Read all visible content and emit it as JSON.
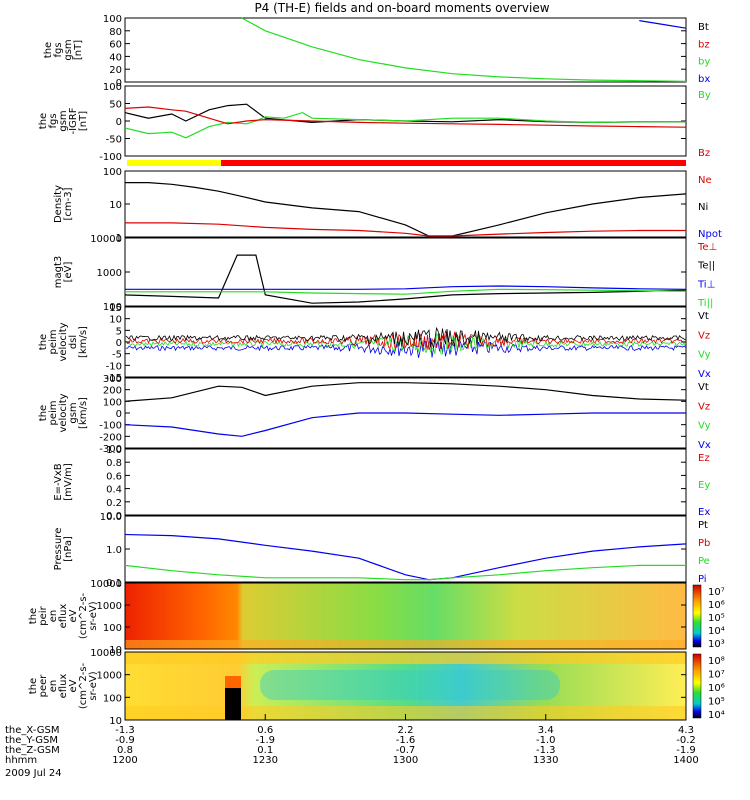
{
  "title": "P4 (TH-E) fields and on-board moments overview",
  "colors": {
    "black": "#000000",
    "red": "#dd0000",
    "green": "#22dd22",
    "blue": "#0000ee",
    "yellow": "#ffff00",
    "bar_red": "#ff0000"
  },
  "panels": [
    {
      "id": "fgs",
      "ylabel": [
        "the",
        "fgs",
        "gsm",
        "[nT]"
      ],
      "ticks": [
        "100",
        "80",
        "60",
        "40",
        "20",
        "0"
      ],
      "legend": [
        {
          "t": "Bt",
          "c": "black"
        },
        {
          "t": "bz",
          "c": "red"
        },
        {
          "t": "by",
          "c": "green"
        },
        {
          "t": "bx",
          "c": "blue"
        }
      ]
    },
    {
      "id": "fgs2",
      "ylabel": [
        "the",
        "fgs",
        "gsm",
        "-IGRF",
        "[nT]"
      ],
      "ticks": [
        "100",
        "50",
        "0",
        "-50",
        "-100"
      ],
      "legend": [
        {
          "t": "By",
          "c": "green"
        },
        {
          "t": "Bz",
          "c": "red"
        }
      ]
    },
    {
      "id": "dens",
      "ylabel": [
        "Density",
        "[cm-3]"
      ],
      "ticks": [
        "100",
        "10",
        "1"
      ],
      "legend": [
        {
          "t": "Ne",
          "c": "red"
        },
        {
          "t": "Ni",
          "c": "black"
        },
        {
          "t": "Npot",
          "c": "blue"
        }
      ]
    },
    {
      "id": "temp",
      "ylabel": [
        "magt3",
        "[eV]"
      ],
      "ticks": [
        "10000",
        "1000",
        "100"
      ],
      "legend": [
        {
          "t": "Te⊥",
          "c": "red"
        },
        {
          "t": "Te||",
          "c": "black"
        },
        {
          "t": "Ti⊥",
          "c": "blue"
        },
        {
          "t": "Ti||",
          "c": "green"
        }
      ]
    },
    {
      "id": "vel1",
      "ylabel": [
        "the",
        "peim",
        "velocity",
        "dsl",
        "[km/s]"
      ],
      "ticks": [
        "15",
        "10",
        "5",
        "0",
        "-5",
        "-10",
        "-15"
      ],
      "legend": [
        {
          "t": "Vt",
          "c": "black"
        },
        {
          "t": "Vz",
          "c": "red"
        },
        {
          "t": "Vy",
          "c": "green"
        },
        {
          "t": "Vx",
          "c": "blue"
        }
      ]
    },
    {
      "id": "vel2",
      "ylabel": [
        "the",
        "peim",
        "velocity",
        "gsm",
        "[km/s]"
      ],
      "ticks": [
        "300",
        "200",
        "100",
        "0",
        "-100",
        "-200",
        "-300"
      ],
      "legend": [
        {
          "t": "Vt",
          "c": "black"
        },
        {
          "t": "Vz",
          "c": "red"
        },
        {
          "t": "Vy",
          "c": "green"
        },
        {
          "t": "Vx",
          "c": "blue"
        }
      ]
    },
    {
      "id": "efield",
      "ylabel": [
        "E=-VxB",
        "[mV/m]"
      ],
      "ticks": [
        "1.0",
        "0.8",
        "0.6",
        "0.4",
        "0.2",
        "0.0"
      ],
      "legend": [
        {
          "t": "Ez",
          "c": "red"
        },
        {
          "t": "Ey",
          "c": "green"
        },
        {
          "t": "Ex",
          "c": "blue"
        }
      ]
    },
    {
      "id": "press",
      "ylabel": [
        "Pressure",
        "[nPa]"
      ],
      "ticks": [
        "10.0",
        "1.0",
        "0.1"
      ],
      "legend": [
        {
          "t": "Pt",
          "c": "black"
        },
        {
          "t": "Pb",
          "c": "red"
        },
        {
          "t": "Pe",
          "c": "green"
        },
        {
          "t": "Pi",
          "c": "blue"
        }
      ]
    },
    {
      "id": "ion_spec",
      "ylabel": [
        "the",
        "peir",
        "en",
        "eflux",
        "eV",
        "(cm^2-s-",
        "sr-eV)"
      ],
      "ticks": [
        "10000",
        "1000",
        "100",
        "10"
      ],
      "cbar": [
        "10⁷",
        "10⁶",
        "10⁵",
        "10⁴",
        "10³"
      ]
    },
    {
      "id": "el_spec",
      "ylabel": [
        "the",
        "peer",
        "en",
        "eflux",
        "eV",
        "(cm^2-s-",
        "sr-eV)"
      ],
      "ticks": [
        "10000",
        "1000",
        "100",
        "10"
      ],
      "cbar": [
        "10⁸",
        "10⁷",
        "10⁶",
        "10⁵",
        "10⁴"
      ]
    }
  ],
  "xaxis": {
    "rows": [
      {
        "label": "the_X-GSM",
        "values": [
          "-1.3",
          "0.6",
          "2.2",
          "3.4",
          "4.3"
        ]
      },
      {
        "label": "the_Y-GSM",
        "values": [
          "-0.9",
          "-1.9",
          "-1.6",
          "-1.0",
          "-0.2"
        ]
      },
      {
        "label": "the_Z-GSM",
        "values": [
          "0.8",
          "0.1",
          "-0.7",
          "-1.3",
          "-1.9"
        ]
      },
      {
        "label": "hhmm",
        "values": [
          "1200",
          "1230",
          "1300",
          "1330",
          "1400"
        ]
      }
    ],
    "date": "2009 Jul 24"
  },
  "chart_data": {
    "type": "line",
    "title": "P4 (TH-E) fields and on-board moments overview",
    "x_time": [
      "1200",
      "1230",
      "1300",
      "1330",
      "1400"
    ],
    "series": [
      {
        "panel": "fgs",
        "name": "by",
        "x": [
          "1200",
          "1205",
          "1210",
          "1215",
          "1220",
          "1225",
          "1230",
          "1240",
          "1250",
          "1300",
          "1310",
          "1320",
          "1330",
          "1340",
          "1350",
          "1400"
        ],
        "values": [
          null,
          null,
          null,
          null,
          null,
          100,
          80,
          55,
          35,
          22,
          13,
          8,
          5,
          3,
          2,
          1
        ]
      },
      {
        "panel": "fgs",
        "name": "bx",
        "x": [
          "1350",
          "1355",
          "1400"
        ],
        "values": [
          96,
          90,
          84
        ]
      },
      {
        "panel": "fgs2",
        "name": "Bt",
        "x": [
          "1200",
          "1205",
          "1210",
          "1213",
          "1218",
          "1222",
          "1226",
          "1230",
          "1240",
          "1250",
          "1300",
          "1310",
          "1320",
          "1330",
          "1340",
          "1350",
          "1400"
        ],
        "values": [
          30,
          10,
          25,
          0,
          40,
          55,
          60,
          10,
          -5,
          5,
          0,
          -3,
          5,
          -2,
          -5,
          -3,
          -3
        ]
      },
      {
        "panel": "fgs2",
        "name": "By",
        "x": [
          "1200",
          "1205",
          "1210",
          "1213",
          "1218",
          "1222",
          "1226",
          "1228",
          "1230",
          "1234",
          "1238",
          "1240",
          "1250",
          "1300",
          "1310",
          "1320",
          "1330",
          "1340",
          "1350",
          "1400"
        ],
        "values": [
          -25,
          -45,
          -40,
          -60,
          -20,
          -5,
          -10,
          0,
          15,
          10,
          30,
          10,
          5,
          0,
          10,
          10,
          0,
          -5,
          -3,
          -3
        ]
      },
      {
        "panel": "fgs2",
        "name": "Bz",
        "x": [
          "1200",
          "1205",
          "1210",
          "1213",
          "1218",
          "1222",
          "1226",
          "1230",
          "1240",
          "1250",
          "1300",
          "1310",
          "1320",
          "1330",
          "1340",
          "1350",
          "1400"
        ],
        "values": [
          45,
          50,
          40,
          35,
          10,
          -10,
          0,
          5,
          0,
          -5,
          -8,
          -10,
          -12,
          -15,
          -18,
          -20,
          -22
        ]
      },
      {
        "panel": "dens",
        "name": "Ni",
        "x": [
          "1200",
          "1205",
          "1210",
          "1215",
          "1220",
          "1225",
          "1230",
          "1240",
          "1250",
          "1300",
          "1305",
          "1310",
          "1320",
          "1330",
          "1340",
          "1350",
          "1400"
        ],
        "values": [
          70,
          70,
          60,
          45,
          32,
          20,
          12,
          7,
          5,
          1.5,
          0.55,
          0.55,
          1.5,
          4.5,
          10,
          18,
          25
        ]
      },
      {
        "panel": "dens",
        "name": "Ne",
        "x": [
          "1200",
          "1210",
          "1220",
          "1230",
          "1240",
          "1250",
          "1300",
          "1305",
          "1310",
          "1320",
          "1330",
          "1340",
          "1350",
          "1400"
        ],
        "values": [
          1.8,
          1.8,
          1.6,
          1.2,
          1.0,
          0.9,
          0.7,
          0.55,
          0.55,
          0.65,
          0.75,
          0.85,
          0.9,
          0.9
        ]
      },
      {
        "panel": "temp",
        "name": "Te||",
        "x": [
          "1200",
          "1210",
          "1220",
          "1224",
          "1228",
          "1230",
          "1240",
          "1250",
          "1300",
          "1310",
          "1320",
          "1330",
          "1340",
          "1350",
          "1400"
        ],
        "values": [
          200,
          180,
          160,
          3500,
          3500,
          200,
          110,
          120,
          150,
          200,
          220,
          230,
          240,
          260,
          280
        ]
      },
      {
        "panel": "temp",
        "name": "Ti⊥",
        "x": [
          "1200",
          "1230",
          "1240",
          "1250",
          "1300",
          "1310",
          "1320",
          "1330",
          "1340",
          "1350",
          "1400"
        ],
        "values": [
          300,
          300,
          300,
          300,
          310,
          360,
          380,
          360,
          330,
          310,
          300
        ]
      },
      {
        "panel": "temp",
        "name": "Ti||",
        "x": [
          "1200",
          "1230",
          "1240",
          "1250",
          "1300",
          "1310",
          "1320",
          "1330",
          "1340",
          "1350",
          "1400"
        ],
        "values": [
          250,
          250,
          230,
          220,
          210,
          260,
          300,
          290,
          280,
          270,
          260
        ]
      },
      {
        "panel": "vel2",
        "name": "Vt",
        "x": [
          "1200",
          "1210",
          "1220",
          "1225",
          "1230",
          "1240",
          "1250",
          "1300",
          "1310",
          "1320",
          "1330",
          "1340",
          "1350",
          "1400"
        ],
        "values": [
          100,
          130,
          230,
          220,
          150,
          230,
          260,
          260,
          250,
          230,
          200,
          150,
          120,
          110
        ]
      },
      {
        "panel": "vel2",
        "name": "Vx",
        "x": [
          "1200",
          "1210",
          "1220",
          "1225",
          "1230",
          "1240",
          "1250",
          "1300",
          "1310",
          "1320",
          "1330",
          "1340",
          "1350",
          "1400"
        ],
        "values": [
          -100,
          -120,
          -180,
          -200,
          -150,
          -40,
          0,
          0,
          -10,
          -20,
          -10,
          0,
          0,
          0
        ]
      },
      {
        "panel": "press",
        "name": "Pi",
        "x": [
          "1200",
          "1210",
          "1220",
          "1230",
          "1240",
          "1250",
          "1300",
          "1305",
          "1310",
          "1320",
          "1330",
          "1340",
          "1350",
          "1400"
        ],
        "values": [
          2.0,
          1.8,
          1.3,
          0.7,
          0.4,
          0.2,
          0.04,
          0.025,
          0.03,
          0.08,
          0.2,
          0.4,
          0.6,
          0.8
        ]
      },
      {
        "panel": "press",
        "name": "Pe",
        "x": [
          "1200",
          "1210",
          "1220",
          "1230",
          "1240",
          "1250",
          "1300",
          "1305",
          "1310",
          "1320",
          "1330",
          "1340",
          "1350",
          "1400"
        ],
        "values": [
          0.1,
          0.06,
          0.04,
          0.03,
          0.03,
          0.03,
          0.025,
          0.025,
          0.03,
          0.04,
          0.06,
          0.08,
          0.1,
          0.1
        ]
      }
    ]
  }
}
